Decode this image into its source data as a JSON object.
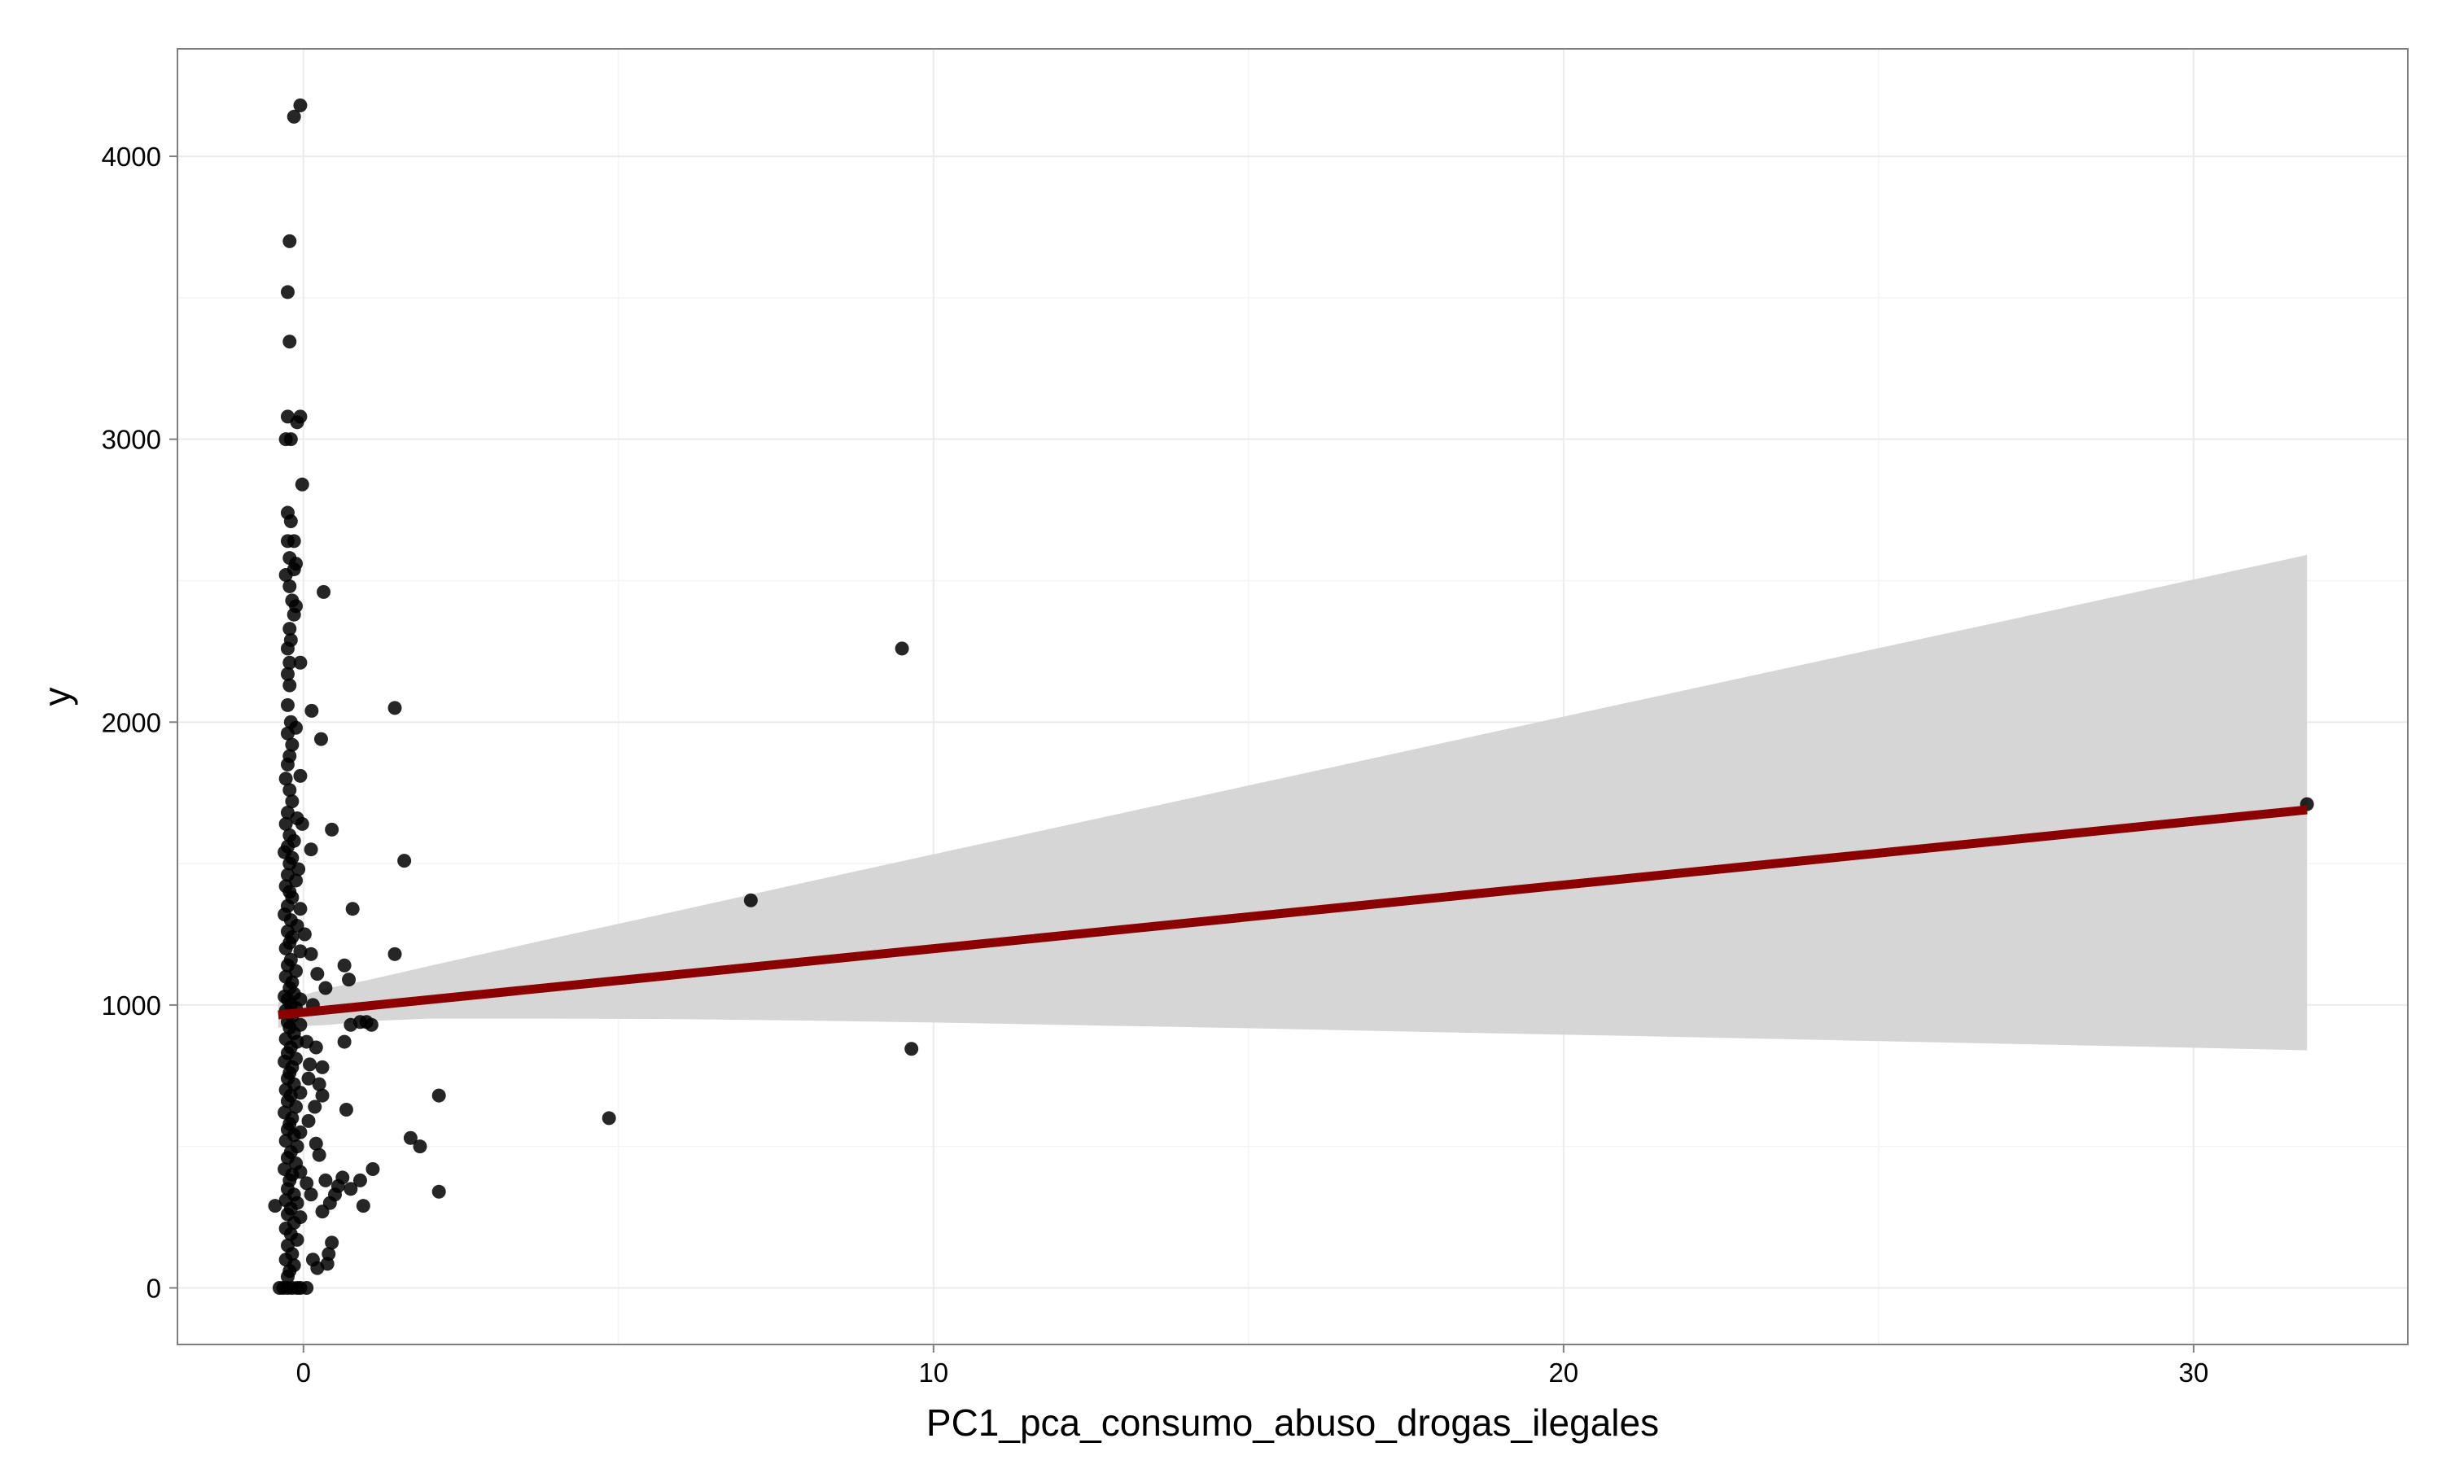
{
  "chart_data": {
    "type": "scatter",
    "title": "",
    "xlabel": "PC1_pca_consumo_abuso_drogas_ilegales",
    "ylabel": "y",
    "xlim": [
      -2,
      33.4
    ],
    "ylim": [
      -200,
      4380
    ],
    "x_ticks": [
      0,
      10,
      20,
      30
    ],
    "x_tick_labels": [
      "0",
      "10",
      "20",
      "30"
    ],
    "y_ticks": [
      0,
      1000,
      2000,
      3000,
      4000
    ],
    "y_tick_labels": [
      "0",
      "1000",
      "2000",
      "3000",
      "4000"
    ],
    "grid": true,
    "legend": "none",
    "colors": {
      "points": "#000000",
      "fit_line": "#8b0000",
      "confidence_band": "#d4d4d4",
      "panel_border": "#7f7f7f",
      "grid_major": "#ebebeb",
      "grid_minor": "#f4f4f4"
    },
    "series": [
      {
        "points": [
          [
            -0.05,
            4180
          ],
          [
            -0.15,
            4140
          ],
          [
            -0.22,
            3700
          ],
          [
            -0.25,
            3520
          ],
          [
            -0.22,
            3345
          ],
          [
            -0.25,
            3080
          ],
          [
            -0.05,
            3080
          ],
          [
            -0.1,
            3060
          ],
          [
            -0.28,
            3000
          ],
          [
            -0.2,
            3000
          ],
          [
            -0.02,
            2840
          ],
          [
            -0.25,
            2740
          ],
          [
            -0.2,
            2710
          ],
          [
            -0.25,
            2640
          ],
          [
            -0.15,
            2640
          ],
          [
            -0.22,
            2580
          ],
          [
            -0.12,
            2560
          ],
          [
            -0.28,
            2520
          ],
          [
            -0.15,
            2540
          ],
          [
            -0.22,
            2480
          ],
          [
            0.32,
            2460
          ],
          [
            -0.18,
            2430
          ],
          [
            -0.12,
            2410
          ],
          [
            -0.15,
            2380
          ],
          [
            -0.22,
            2330
          ],
          [
            -0.2,
            2290
          ],
          [
            -0.25,
            2260
          ],
          [
            -0.05,
            2210
          ],
          [
            -0.22,
            2210
          ],
          [
            -0.25,
            2170
          ],
          [
            -0.22,
            2130
          ],
          [
            0.13,
            2040
          ],
          [
            -0.25,
            2060
          ],
          [
            -0.2,
            2000
          ],
          [
            -0.12,
            1980
          ],
          [
            -0.25,
            1960
          ],
          [
            0.28,
            1940
          ],
          [
            -0.18,
            1920
          ],
          [
            -0.22,
            1880
          ],
          [
            -0.25,
            1850
          ],
          [
            -0.05,
            1810
          ],
          [
            -0.28,
            1800
          ],
          [
            -0.22,
            1760
          ],
          [
            -0.18,
            1720
          ],
          [
            -0.25,
            1680
          ],
          [
            -0.1,
            1660
          ],
          [
            -0.28,
            1640
          ],
          [
            -0.02,
            1640
          ],
          [
            -0.22,
            1600
          ],
          [
            -0.15,
            1580
          ],
          [
            0.45,
            1620
          ],
          [
            -0.25,
            1560
          ],
          [
            -0.3,
            1540
          ],
          [
            0.12,
            1550
          ],
          [
            -0.18,
            1520
          ],
          [
            -0.22,
            1500
          ],
          [
            -0.08,
            1480
          ],
          [
            -0.25,
            1460
          ],
          [
            -0.12,
            1440
          ],
          [
            -0.28,
            1420
          ],
          [
            -0.22,
            1400
          ],
          [
            -0.18,
            1380
          ],
          [
            -0.25,
            1350
          ],
          [
            -0.05,
            1340
          ],
          [
            -0.3,
            1320
          ],
          [
            -0.2,
            1300
          ],
          [
            -0.1,
            1280
          ],
          [
            -0.25,
            1260
          ],
          [
            0.02,
            1250
          ],
          [
            -0.18,
            1240
          ],
          [
            -0.22,
            1220
          ],
          [
            -0.28,
            1200
          ],
          [
            -0.05,
            1190
          ],
          [
            0.12,
            1180
          ],
          [
            -0.2,
            1160
          ],
          [
            -0.25,
            1140
          ],
          [
            -0.12,
            1120
          ],
          [
            0.22,
            1110
          ],
          [
            -0.28,
            1100
          ],
          [
            -0.18,
            1080
          ],
          [
            0.35,
            1060
          ],
          [
            -0.22,
            1060
          ],
          [
            -0.15,
            1040
          ],
          [
            -0.3,
            1030
          ],
          [
            -0.25,
            1020
          ],
          [
            -0.05,
            1020
          ],
          [
            -0.2,
            1000
          ],
          [
            -0.12,
            990
          ],
          [
            0.15,
            1000
          ],
          [
            -0.28,
            980
          ],
          [
            -0.18,
            960
          ],
          [
            -0.25,
            940
          ],
          [
            -0.05,
            930
          ],
          [
            -0.22,
            920
          ],
          [
            -0.15,
            900
          ],
          [
            -0.28,
            880
          ],
          [
            -0.1,
            870
          ],
          [
            0.05,
            870
          ],
          [
            -0.2,
            850
          ],
          [
            0.2,
            850
          ],
          [
            -0.25,
            830
          ],
          [
            -0.12,
            810
          ],
          [
            -0.3,
            800
          ],
          [
            0.1,
            790
          ],
          [
            -0.18,
            780
          ],
          [
            0.3,
            780
          ],
          [
            -0.22,
            760
          ],
          [
            -0.25,
            740
          ],
          [
            0.08,
            740
          ],
          [
            -0.15,
            720
          ],
          [
            0.25,
            720
          ],
          [
            -0.28,
            700
          ],
          [
            -0.05,
            690
          ],
          [
            -0.2,
            680
          ],
          [
            0.3,
            680
          ],
          [
            -0.25,
            660
          ],
          [
            -0.12,
            640
          ],
          [
            0.18,
            640
          ],
          [
            -0.3,
            620
          ],
          [
            -0.18,
            600
          ],
          [
            0.08,
            590
          ],
          [
            -0.22,
            580
          ],
          [
            -0.25,
            560
          ],
          [
            -0.05,
            550
          ],
          [
            -0.15,
            540
          ],
          [
            -0.28,
            520
          ],
          [
            0.2,
            510
          ],
          [
            -0.1,
            500
          ],
          [
            -0.2,
            480
          ],
          [
            0.25,
            470
          ],
          [
            -0.25,
            460
          ],
          [
            -0.12,
            440
          ],
          [
            -0.3,
            420
          ],
          [
            -0.05,
            410
          ],
          [
            -0.18,
            400
          ],
          [
            -0.22,
            380
          ],
          [
            0.05,
            370
          ],
          [
            -0.25,
            350
          ],
          [
            -0.15,
            330
          ],
          [
            -0.28,
            310
          ],
          [
            -0.1,
            300
          ],
          [
            -0.2,
            280
          ],
          [
            -0.25,
            260
          ],
          [
            -0.05,
            250
          ],
          [
            -0.15,
            230
          ],
          [
            -0.28,
            210
          ],
          [
            -0.2,
            190
          ],
          [
            -0.1,
            170
          ],
          [
            -0.25,
            150
          ],
          [
            -0.18,
            120
          ],
          [
            -0.28,
            100
          ],
          [
            -0.15,
            80
          ],
          [
            -0.22,
            60
          ],
          [
            -0.25,
            40
          ],
          [
            -0.45,
            290
          ],
          [
            -0.38,
            0
          ],
          [
            -0.32,
            0
          ],
          [
            -0.25,
            0
          ],
          [
            -0.18,
            0
          ],
          [
            -0.1,
            0
          ],
          [
            -0.05,
            0
          ],
          [
            0.05,
            0
          ],
          [
            0.35,
            380
          ],
          [
            0.5,
            330
          ],
          [
            0.42,
            300
          ],
          [
            0.3,
            270
          ],
          [
            0.55,
            360
          ],
          [
            0.62,
            390
          ],
          [
            0.75,
            350
          ],
          [
            0.9,
            380
          ],
          [
            0.95,
            290
          ],
          [
            0.45,
            160
          ],
          [
            0.4,
            120
          ],
          [
            0.38,
            85
          ],
          [
            0.22,
            70
          ],
          [
            0.15,
            100
          ],
          [
            0.12,
            330
          ],
          [
            1.1,
            420
          ],
          [
            0.65,
            870
          ],
          [
            0.75,
            930
          ],
          [
            0.9,
            940
          ],
          [
            1.0,
            940
          ],
          [
            1.08,
            930
          ],
          [
            0.68,
            630
          ],
          [
            0.65,
            1140
          ],
          [
            0.72,
            1090
          ],
          [
            0.78,
            1340
          ],
          [
            1.45,
            1180
          ],
          [
            1.45,
            2050
          ],
          [
            1.6,
            1510
          ],
          [
            1.7,
            530
          ],
          [
            1.85,
            500
          ],
          [
            2.15,
            680
          ],
          [
            2.15,
            340
          ],
          [
            4.85,
            600
          ],
          [
            7.1,
            1370
          ],
          [
            9.5,
            2260
          ],
          [
            9.65,
            845
          ],
          [
            31.8,
            1710
          ]
        ]
      }
    ],
    "fit_line": {
      "x": [
        -0.4,
        31.8
      ],
      "y": [
        965,
        1690
      ]
    },
    "confidence_band": {
      "x": [
        -0.4,
        0.4,
        1,
        2,
        4,
        6,
        8,
        10,
        12,
        15,
        18,
        21,
        24,
        27,
        30,
        31.8
      ],
      "upper": [
        1010,
        1060,
        1087,
        1138,
        1238,
        1336,
        1435,
        1533,
        1630,
        1776,
        1922,
        2068,
        2213,
        2358,
        2504,
        2591
      ],
      "lower": [
        920,
        930,
        943,
        952,
        952,
        950,
        945,
        938,
        930,
        918,
        904,
        891,
        877,
        863,
        849,
        840
      ]
    }
  }
}
